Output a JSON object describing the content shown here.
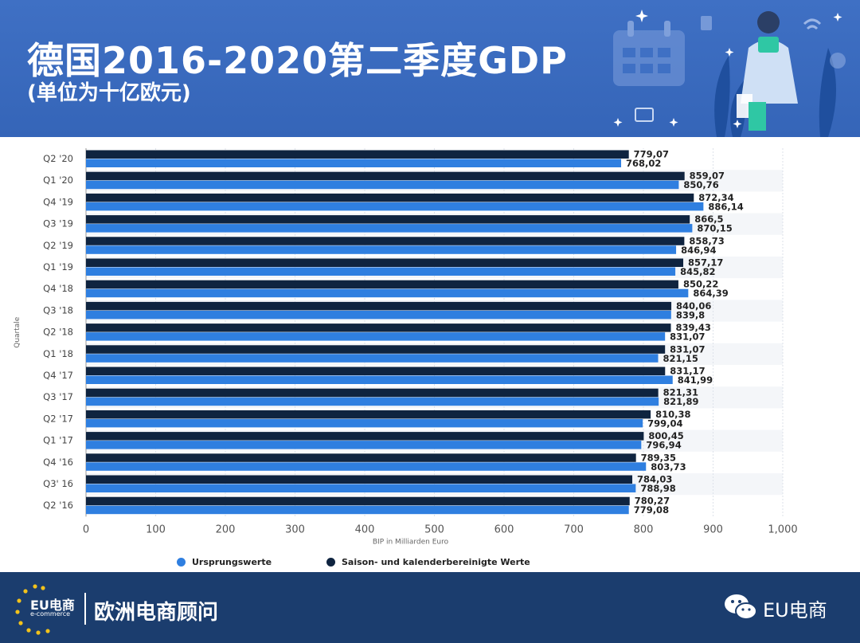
{
  "header": {
    "title": "德国2016-2020第二季度GDP",
    "subtitle": "(单位为十亿欧元)"
  },
  "footer": {
    "logo_text": "EU电商",
    "logo_sub": "e-commerce",
    "brand": "欧洲电商顾问",
    "wechat_label": "EU电商"
  },
  "colors": {
    "header_bg": "#3a6bbf",
    "footer_bg": "#1b3d6e",
    "series_original": "#2f7fe0",
    "series_adjusted": "#0f2440"
  },
  "chart_data": {
    "type": "bar",
    "orientation": "horizontal",
    "categories": [
      "Q2 '20",
      "Q1 '20",
      "Q4 '19",
      "Q3 '19",
      "Q2 '19",
      "Q1 '19",
      "Q4 '18",
      "Q3 '18",
      "Q2 '18",
      "Q1 '18",
      "Q4 '17",
      "Q3 '17",
      "Q2 '17",
      "Q1 '17",
      "Q4 '16",
      "Q3' 16",
      "Q2 '16"
    ],
    "series": [
      {
        "name": "Saison- und kalenderbereinigte Werte",
        "color": "#0f2440",
        "values": [
          779.07,
          859.07,
          872.34,
          866.5,
          858.73,
          857.17,
          850.22,
          840.06,
          839.43,
          831.07,
          831.17,
          821.31,
          810.38,
          800.45,
          789.35,
          784.03,
          780.27
        ],
        "labels": [
          "779,07",
          "859,07",
          "872,34",
          "866,5",
          "858,73",
          "857,17",
          "850,22",
          "840,06",
          "839,43",
          "831,07",
          "831,17",
          "821,31",
          "810,38",
          "800,45",
          "789,35",
          "784,03",
          "780,27"
        ]
      },
      {
        "name": "Ursprungswerte",
        "color": "#2f7fe0",
        "values": [
          768.02,
          850.76,
          886.14,
          870.15,
          846.94,
          845.82,
          864.39,
          839.8,
          831.07,
          821.15,
          841.99,
          821.89,
          799.04,
          796.94,
          803.73,
          788.98,
          779.08
        ],
        "labels": [
          "768,02",
          "850,76",
          "886,14",
          "870,15",
          "846,94",
          "845,82",
          "864,39",
          "839,8",
          "831,07",
          "821,15",
          "841,99",
          "821,89",
          "799,04",
          "796,94",
          "803,73",
          "788,98",
          "779,08"
        ]
      }
    ],
    "xticks": [
      "0",
      "100",
      "200",
      "300",
      "400",
      "500",
      "600",
      "700",
      "800",
      "900",
      "1,000"
    ],
    "xlim": [
      0,
      1000
    ],
    "xlabel": "BIP in Milliarden Euro",
    "ylabel": "Quartale",
    "legend": [
      "Ursprungswerte",
      "Saison- und kalenderbereinigte Werte"
    ],
    "legend_position": "bottom",
    "grid": true
  }
}
